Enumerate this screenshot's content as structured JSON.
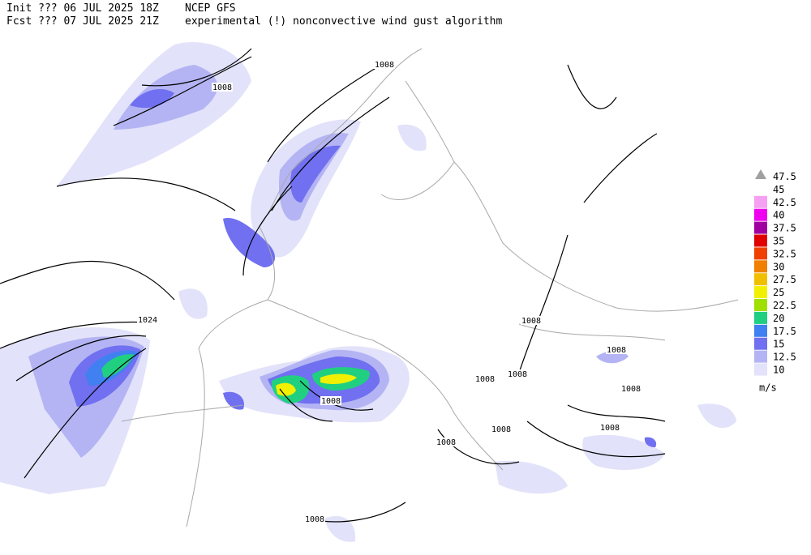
{
  "header": {
    "init": "Init  ??? 06 JUL 2025 18Z",
    "model": "NCEP GFS",
    "fcst": "Fcst ??? 07 JUL 2025 21Z",
    "algorithm": "experimental (!) nonconvective wind gust algorithm"
  },
  "legend": {
    "items": [
      {
        "label": "47.5",
        "color": "#a0a0a0",
        "marker": "triangle"
      },
      {
        "label": "45",
        "color": "#ffffff"
      },
      {
        "label": "42.5",
        "color": "#f5a0f0"
      },
      {
        "label": "40",
        "color": "#f000f0"
      },
      {
        "label": "37.5",
        "color": "#a000a0"
      },
      {
        "label": "35",
        "color": "#e00000"
      },
      {
        "label": "32.5",
        "color": "#f04000"
      },
      {
        "label": "30",
        "color": "#f08000"
      },
      {
        "label": "27.5",
        "color": "#f0c000"
      },
      {
        "label": "25",
        "color": "#f0f000"
      },
      {
        "label": "22.5",
        "color": "#a0e000"
      },
      {
        "label": "20",
        "color": "#20d080"
      },
      {
        "label": "17.5",
        "color": "#4080f0"
      },
      {
        "label": "15",
        "color": "#7070f0"
      },
      {
        "label": "12.5",
        "color": "#b4b4f4"
      },
      {
        "label": "10",
        "color": "#e2e2fa"
      }
    ],
    "unit": "m/s"
  },
  "isobar_labels": [
    "1008",
    "1008",
    "1024",
    "1008",
    "1008",
    "1008",
    "1008",
    "1008",
    "1008",
    "1008",
    "1008",
    "1008",
    "1008"
  ]
}
